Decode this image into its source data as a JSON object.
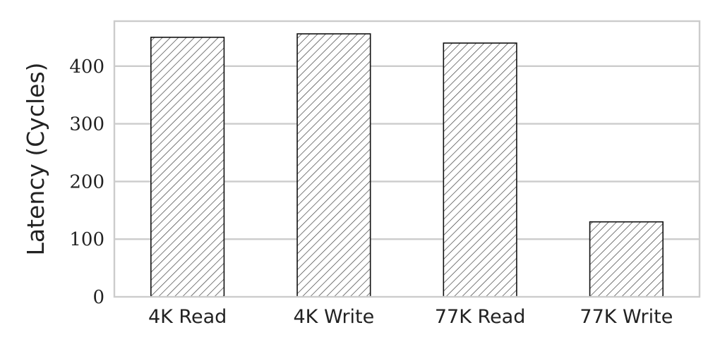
{
  "chart_data": {
    "type": "bar",
    "categories": [
      "4K Read",
      "4K Write",
      "77K Read",
      "77K Write"
    ],
    "values": [
      450,
      456,
      440,
      130
    ],
    "title": "",
    "xlabel": "",
    "ylabel": "Latency (Cycles)",
    "ylim": [
      0,
      478
    ],
    "yticks": [
      0,
      100,
      200,
      300,
      400
    ],
    "grid": "horizontal",
    "bar_fill": "diagonal hatch",
    "colors": {
      "bar_edge": "#111111",
      "hatch": "#333333",
      "grid": "#cccccc",
      "text": "#222222"
    }
  }
}
